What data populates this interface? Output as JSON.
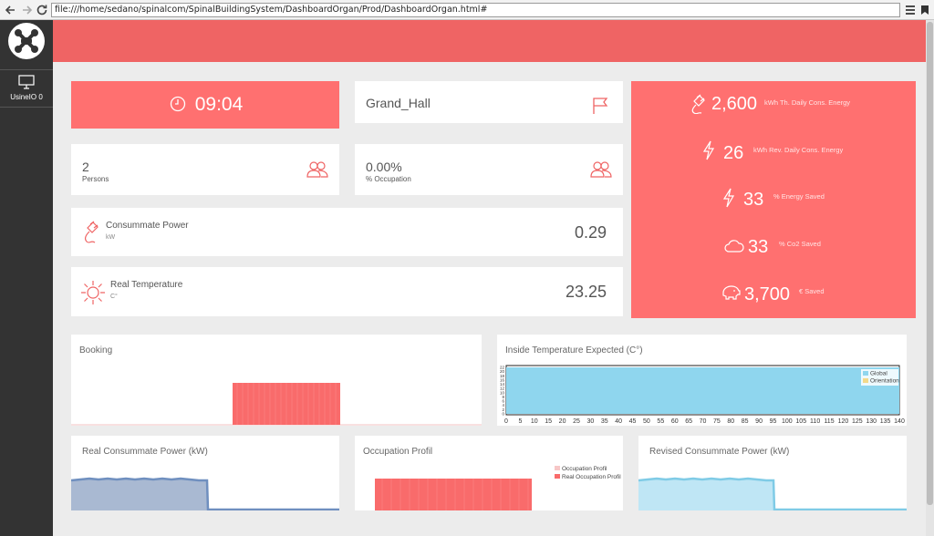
{
  "browser": {
    "back_icon": "back-arrow-icon",
    "forward_icon": "forward-arrow-icon",
    "reload_icon": "reload-icon",
    "url": "file:///home/sedano/spinalcom/SpinalBuildingSystem/DashboardOrgan/Prod/DashboardOrgan.html#",
    "menu_icon": "menu-icon"
  },
  "sidebar": {
    "logo_icon": "drone-logo-icon",
    "items": [
      {
        "icon": "monitor-icon",
        "label": "UsineIO 0"
      }
    ]
  },
  "time": {
    "value": "09:04",
    "icon": "clock-icon"
  },
  "location": {
    "value": "Grand_Hall",
    "icon": "flag-icon"
  },
  "persons": {
    "value": "2",
    "label": "Persons",
    "icon": "users-icon"
  },
  "occupation": {
    "value": "0.00%",
    "label": "% Occupation",
    "icon": "users-icon"
  },
  "power": {
    "label": "Consummate Power",
    "unit": "kW",
    "value": "0.29",
    "icon": "plug-icon"
  },
  "temperature": {
    "label": "Real Temperature",
    "unit": "C°",
    "value": "23.25",
    "icon": "sun-icon"
  },
  "energy": [
    {
      "value": "2,600",
      "label": "kWh Th. Daily Cons. Energy",
      "icon": "plug-icon"
    },
    {
      "value": "26",
      "label": "kWh Rev. Daily Cons. Energy",
      "icon": "lightning-icon"
    },
    {
      "value": "33",
      "label": "% Energy Saved",
      "icon": "lightning-icon"
    },
    {
      "value": "33",
      "label": "% Co2 Saved",
      "icon": "cloud-icon"
    },
    {
      "value": "3,700",
      "label": "€ Saved",
      "icon": "piggy-bank-icon"
    }
  ],
  "colors": {
    "banner": "#ef6464",
    "tile_red": "#ff7070",
    "booking_bar": "#f96b6b",
    "temp_fill": "#8fd6ee",
    "power_fill": "#a9b9d2",
    "power_line": "#6f8fbf",
    "revised_fill": "#bfe6f5",
    "revised_line": "#7fcbe6"
  },
  "charts": {
    "booking": {
      "title": "Booking"
    },
    "inside_temp": {
      "title": "Inside Temperature Expected (C°)",
      "legend": [
        "Global",
        "Orientation"
      ],
      "x_ticks": [
        "0",
        "5",
        "10",
        "15",
        "20",
        "25",
        "30",
        "35",
        "40",
        "45",
        "50",
        "55",
        "60",
        "65",
        "70",
        "75",
        "80",
        "85",
        "90",
        "95",
        "100",
        "105",
        "110",
        "115",
        "120",
        "125",
        "130",
        "135",
        "140"
      ],
      "y_ticks": [
        "22",
        "20",
        "18",
        "16",
        "14",
        "12",
        "10",
        "8",
        "6",
        "4",
        "2",
        "0"
      ]
    },
    "real_power": {
      "title": "Real Consummate Power (kW)"
    },
    "occupation_profil": {
      "title": "Occupation Profil",
      "legend": [
        "Occupation Profil",
        "Real Occupation Profil"
      ]
    },
    "revised_power": {
      "title": "Revised Consummate Power (kW)"
    }
  },
  "chart_data": [
    {
      "type": "area",
      "title": "Inside Temperature Expected (C°)",
      "series": [
        {
          "name": "Global",
          "x": [
            0,
            140
          ],
          "values": [
            22,
            22
          ]
        },
        {
          "name": "Orientation",
          "x": [
            0,
            140
          ],
          "values": [
            0,
            0
          ]
        }
      ],
      "xlim": [
        0,
        140
      ],
      "ylim": [
        0,
        22
      ]
    }
  ]
}
